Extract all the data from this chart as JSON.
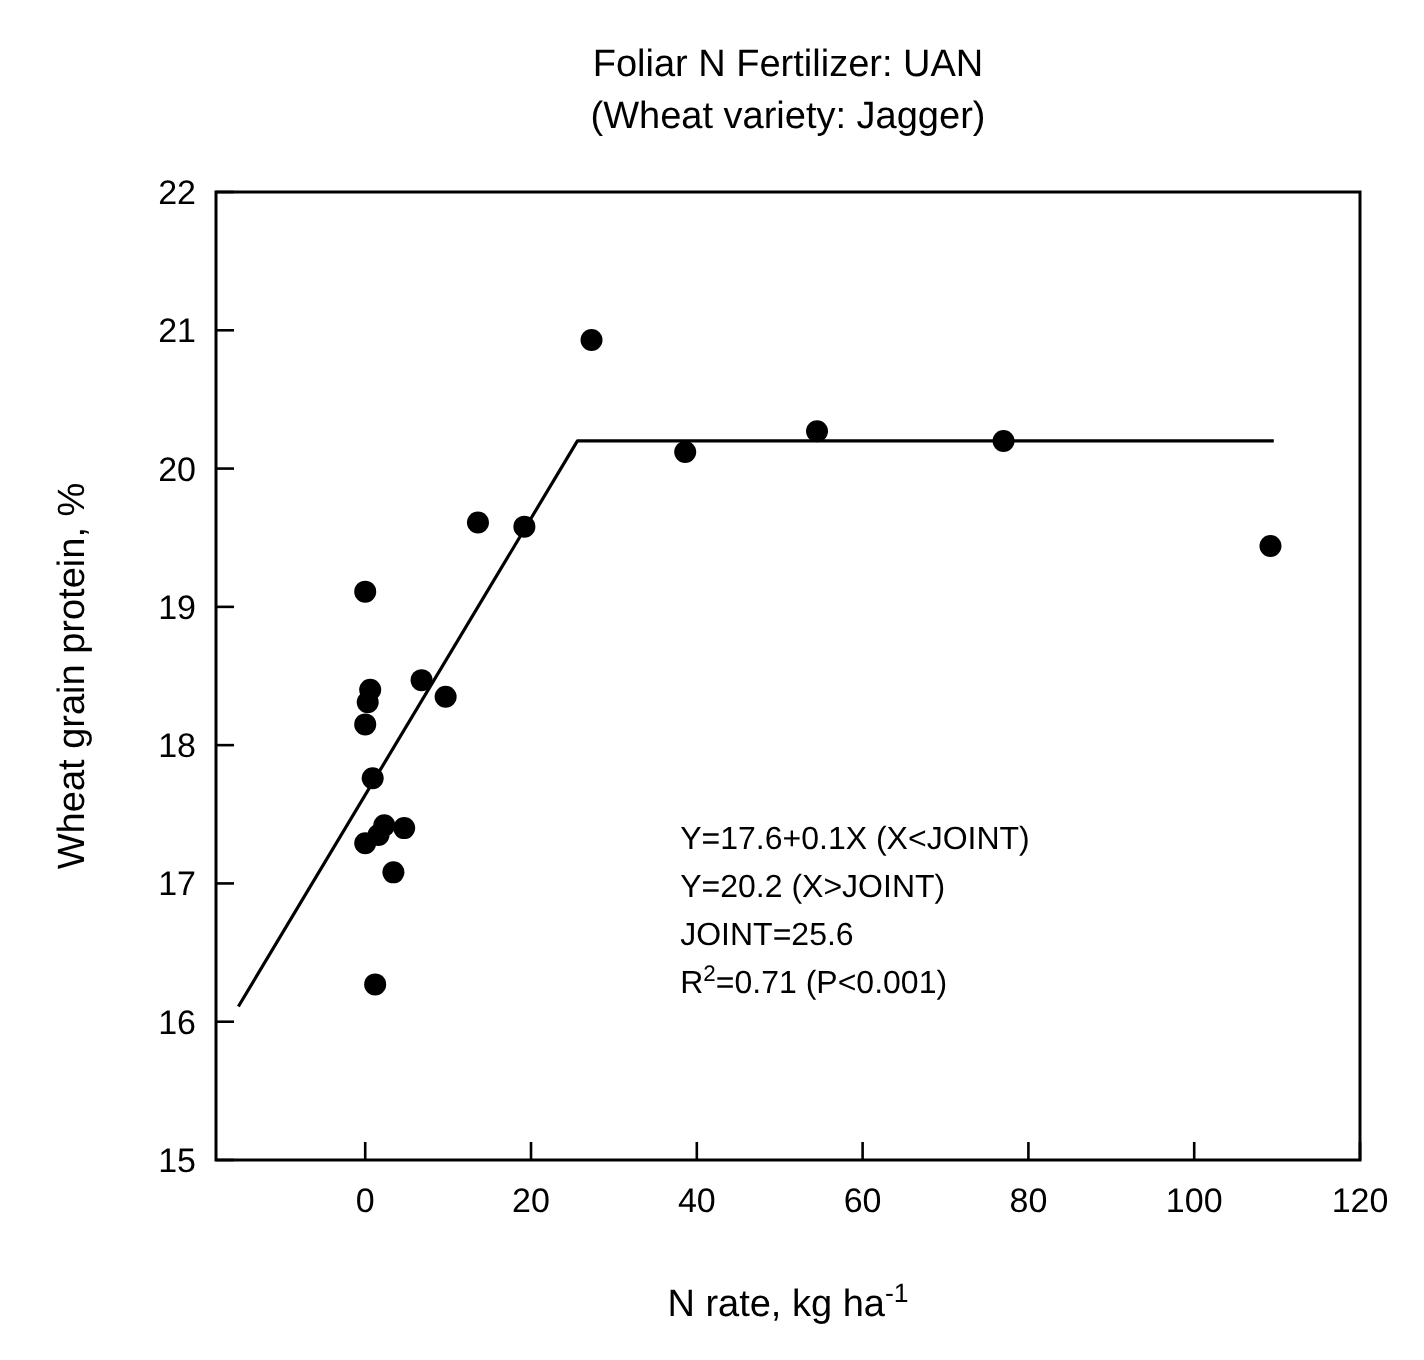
{
  "chart_data": {
    "type": "scatter",
    "title": "Foliar N Fertilizer: UAN",
    "subtitle": "(Wheat variety: Jagger)",
    "xlabel": "N rate, kg ha$^{-1}$",
    "ylabel": "Wheat grain protein, %",
    "xlim": [
      -18,
      120
    ],
    "xticks": [
      0,
      20,
      40,
      60,
      80,
      100,
      120
    ],
    "ylim": [
      15,
      22
    ],
    "yticks": [
      15,
      16,
      17,
      18,
      19,
      20,
      21,
      22
    ],
    "grid": false,
    "series": [
      {
        "color": "#000000",
        "marker": "circle",
        "x": [
          27.3,
          38.6,
          54.5,
          77,
          109.2,
          13.6,
          19.2,
          0,
          0.6,
          0.3,
          0,
          6.8,
          9.7,
          0.9,
          2.3,
          1.6,
          0,
          4.7,
          3.4,
          1.2
        ],
        "values": [
          20.93,
          20.12,
          20.27,
          20.2,
          19.44,
          19.61,
          19.58,
          19.11,
          18.4,
          18.31,
          18.15,
          18.47,
          18.35,
          17.76,
          17.42,
          17.35,
          17.29,
          17.4,
          17.08,
          16.27
        ]
      },
      {
        "type": "line",
        "color": "#000000",
        "marker": "none",
        "line_style": "solid",
        "x": [
          -15.3,
          25.6,
          109.6
        ],
        "values": [
          16.11,
          20.2,
          20.2
        ]
      }
    ],
    "annotations": [
      "Y=17.6+0.1X (X<JOINT)",
      "Y=20.2 (X>JOINT)",
      "JOINT=25.6",
      "R$^{2}$=0.71 (P<0.001)"
    ]
  }
}
